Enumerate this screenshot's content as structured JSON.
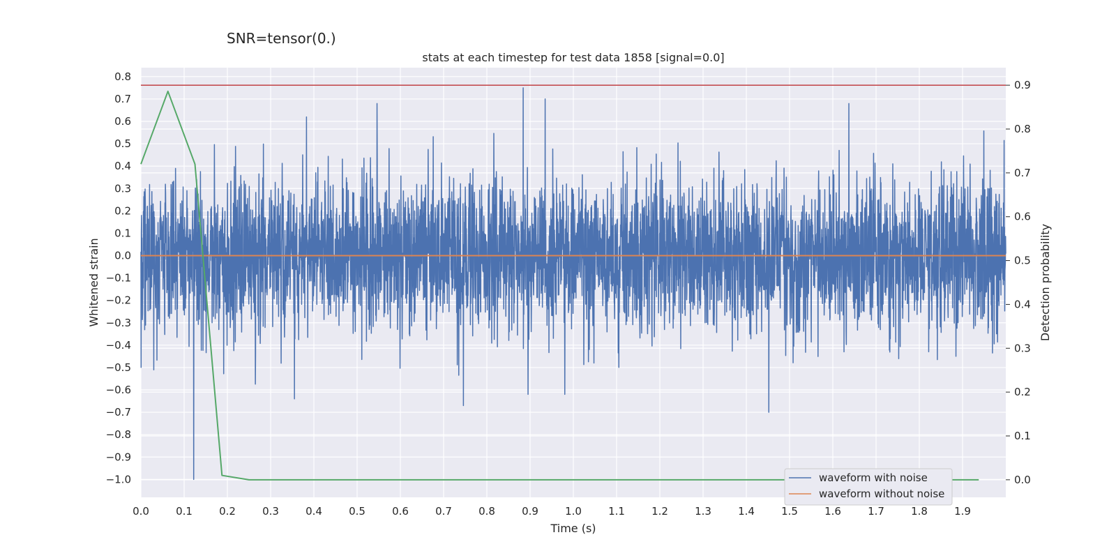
{
  "chart_data": {
    "type": "line",
    "suptitle": "SNR=tensor(0.)",
    "title": "stats at each timestep for test data 1858 [signal=0.0]",
    "xlabel": "Time (s)",
    "ylabel": "Whitened strain",
    "y2label": "Detection probability",
    "xlim": [
      0.0,
      2.0
    ],
    "ylim": [
      -1.08,
      0.84
    ],
    "y2lim": [
      -0.04,
      0.94
    ],
    "xticks": [
      "0.0",
      "0.1",
      "0.2",
      "0.3",
      "0.4",
      "0.5",
      "0.6",
      "0.7",
      "0.8",
      "0.9",
      "1.0",
      "1.1",
      "1.2",
      "1.3",
      "1.4",
      "1.5",
      "1.6",
      "1.7",
      "1.8",
      "1.9"
    ],
    "yticks": [
      "0.8",
      "0.7",
      "0.6",
      "0.5",
      "0.4",
      "0.3",
      "0.2",
      "0.1",
      "0.0",
      "−0.1",
      "−0.2",
      "−0.3",
      "−0.4",
      "−0.5",
      "−0.6",
      "−0.7",
      "−0.8",
      "−0.9",
      "−1.0"
    ],
    "y2ticks": [
      "0.9",
      "0.8",
      "0.7",
      "0.6",
      "0.5",
      "0.4",
      "0.3",
      "0.2",
      "0.1",
      "0.0"
    ],
    "grid": true,
    "legend_position": "lower-right",
    "series": [
      {
        "name": "waveform with noise",
        "color": "#4c72b0",
        "axis": "left",
        "description": "noisy whitened strain, 4096 samples between 0 and 2 s, mostly within ±0.5",
        "notable_extremes": [
          {
            "x": 0.122,
            "y": -1.0
          },
          {
            "x": 0.884,
            "y": 0.75
          },
          {
            "x": 0.935,
            "y": 0.7
          },
          {
            "x": 0.546,
            "y": 0.68
          },
          {
            "x": 1.637,
            "y": 0.68
          },
          {
            "x": 1.452,
            "y": -0.7
          },
          {
            "x": 0.746,
            "y": -0.67
          },
          {
            "x": 0.355,
            "y": -0.64
          }
        ]
      },
      {
        "name": "waveform without noise",
        "color": "#dd8452",
        "axis": "left",
        "x": [
          0.0,
          2.0
        ],
        "y": [
          0.0,
          0.0
        ]
      },
      {
        "name": "",
        "color": "#55a868",
        "axis": "right",
        "x": [
          0.0,
          0.0625,
          0.125,
          0.1875,
          0.25,
          0.3125,
          0.375,
          0.4375,
          0.5,
          0.5625,
          0.625,
          0.6875,
          0.75,
          0.8125,
          0.875,
          0.9375,
          1.0,
          1.0625,
          1.125,
          1.1875,
          1.25,
          1.3125,
          1.375,
          1.4375,
          1.5,
          1.5625,
          1.625,
          1.6875,
          1.75,
          1.8125,
          1.875,
          1.9375
        ],
        "y": [
          0.72,
          0.886,
          0.72,
          0.01,
          0.0,
          0.0,
          0.0,
          0.0,
          0.0,
          0.0,
          0.0,
          0.0,
          0.0,
          0.0,
          0.0,
          0.0,
          0.0,
          0.0,
          0.0,
          0.0,
          0.0,
          0.0,
          0.0,
          0.0,
          0.0,
          0.0,
          0.0,
          0.0,
          0.0,
          0.0,
          0.0,
          0.0
        ]
      },
      {
        "name": "",
        "color": "#c44e52",
        "axis": "right",
        "x": [
          0.0,
          2.0
        ],
        "y": [
          0.9,
          0.9
        ]
      }
    ]
  }
}
